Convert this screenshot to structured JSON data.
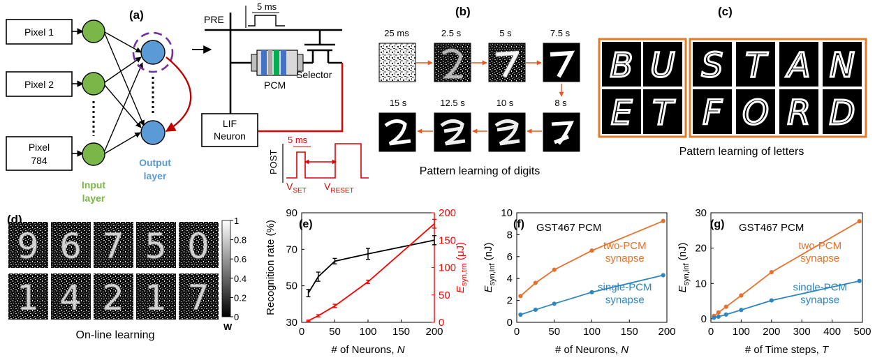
{
  "panel_labels": {
    "a": "(a)",
    "b": "(b)",
    "c": "(c)",
    "d": "(d)",
    "e": "(e)",
    "f": "(f)",
    "g": "(g)"
  },
  "network": {
    "pixels": [
      "Pixel 1",
      "Pixel 2",
      "Pixel"
    ],
    "pixel_784_number": "784",
    "input_layer": [
      "Input",
      "layer"
    ],
    "output_layer": [
      "Output",
      "layer"
    ],
    "colors": {
      "input": "#7ab648",
      "output": "#5b9bd5",
      "feedback": "#c00000",
      "dashed": "#7030a0",
      "pcm_blue": "#4472c4",
      "pcm_green": "#00b050"
    }
  },
  "circuit": {
    "pre": "PRE",
    "pulse_width": "5 ms",
    "pcm": "PCM",
    "selector": "Selector",
    "lif": [
      "LIF",
      "Neuron"
    ],
    "post": "POST",
    "post_pulse": "5 ms",
    "v_set": "V",
    "v_set_sub": "SET",
    "v_reset": "V",
    "v_reset_sub": "RESET"
  },
  "digits": {
    "times": [
      "25 ms",
      "2.5 s",
      "5 s",
      "7.5 s",
      "8 s",
      "10 s",
      "12.5 s",
      "15 s"
    ],
    "caption": "Pattern learning of digits",
    "arrow_color": "#e8571f"
  },
  "letters": {
    "group1": [
      "B",
      "U",
      "E",
      "T"
    ],
    "group2": [
      "S",
      "T",
      "A",
      "N",
      "F",
      "O",
      "R",
      "D"
    ],
    "caption": "Pattern learning of letters",
    "border_color": "#e07b2a"
  },
  "online": {
    "digits_row1": [
      "9",
      "6",
      "7",
      "5",
      "0"
    ],
    "digits_row2": [
      "1",
      "4",
      "2",
      "1",
      "7"
    ],
    "caption": "On-line learning",
    "colorbar_ticks": [
      "1",
      "0.8",
      "0.6",
      "0.4",
      "0.2",
      "0"
    ],
    "colorbar_label": "W"
  },
  "chart_data": [
    {
      "id": "e",
      "type": "line",
      "xlabel": "# of Neurons, ",
      "xlabel_italic": "N",
      "ylabel": "Recognition rate (%)",
      "ylabel_right": "E",
      "ylabel_right_sub": "syn,trn",
      "ylabel_right_unit": " (μJ)",
      "xlim": [
        0,
        200
      ],
      "ylim": [
        30,
        90
      ],
      "ylim_right": [
        0,
        200
      ],
      "xticks": [
        0,
        50,
        100,
        150,
        200
      ],
      "yticks": [
        30,
        50,
        70,
        90
      ],
      "yticks_right": [
        0,
        50,
        100,
        150,
        200
      ],
      "series": [
        {
          "color": "#000000",
          "axis": "left",
          "x": [
            10,
            25,
            50,
            100,
            200
          ],
          "y": [
            46,
            55,
            63.5,
            67.5,
            75
          ],
          "err": [
            2,
            2.5,
            1.5,
            3,
            2.5
          ]
        },
        {
          "color": "#ff0000",
          "axis": "right",
          "x": [
            10,
            25,
            50,
            100,
            200
          ],
          "y": [
            3,
            12,
            30,
            74,
            180
          ],
          "err": [
            1,
            2,
            3,
            3,
            8
          ]
        }
      ]
    },
    {
      "id": "f",
      "type": "line",
      "title": "GST467 PCM",
      "xlabel": "# of Neurons, ",
      "xlabel_italic": "N",
      "ylabel": "E",
      "ylabel_sub": "syn,inf",
      "ylabel_unit": " (nJ)",
      "xlim": [
        0,
        200
      ],
      "ylim": [
        0,
        10
      ],
      "xticks": [
        0,
        50,
        100,
        150,
        200
      ],
      "yticks": [
        0,
        2,
        4,
        6,
        8,
        10
      ],
      "series": [
        {
          "name": "two-PCM synapse",
          "color": "#e8702a",
          "x": [
            5,
            25,
            50,
            100,
            195
          ],
          "y": [
            2.4,
            3.6,
            4.8,
            6.55,
            9.25
          ]
        },
        {
          "name": "single-PCM synapse",
          "color": "#2e86c1",
          "x": [
            5,
            25,
            50,
            100,
            195
          ],
          "y": [
            0.7,
            1.15,
            1.7,
            2.75,
            4.3
          ]
        }
      ]
    },
    {
      "id": "g",
      "type": "line",
      "title": "GST467 PCM",
      "xlabel": "# of Time steps, ",
      "xlabel_italic": "T",
      "ylabel": "E",
      "ylabel_sub": "syn,inf",
      "ylabel_unit": " (nJ)",
      "xlim": [
        0,
        500
      ],
      "ylim": [
        -1,
        30
      ],
      "xticks": [
        0,
        100,
        200,
        300,
        400,
        500
      ],
      "yticks": [
        0,
        10,
        20,
        30
      ],
      "series": [
        {
          "name": "two-PCM synapse",
          "color": "#e8702a",
          "x": [
            10,
            25,
            50,
            100,
            200,
            490
          ],
          "y": [
            0.8,
            1.8,
            3.4,
            6.6,
            13.2,
            27.6
          ]
        },
        {
          "name": "single-PCM synapse",
          "color": "#2e86c1",
          "x": [
            10,
            25,
            50,
            100,
            200,
            490
          ],
          "y": [
            0.3,
            0.6,
            1.2,
            2.5,
            5.2,
            10.7
          ]
        }
      ]
    }
  ]
}
